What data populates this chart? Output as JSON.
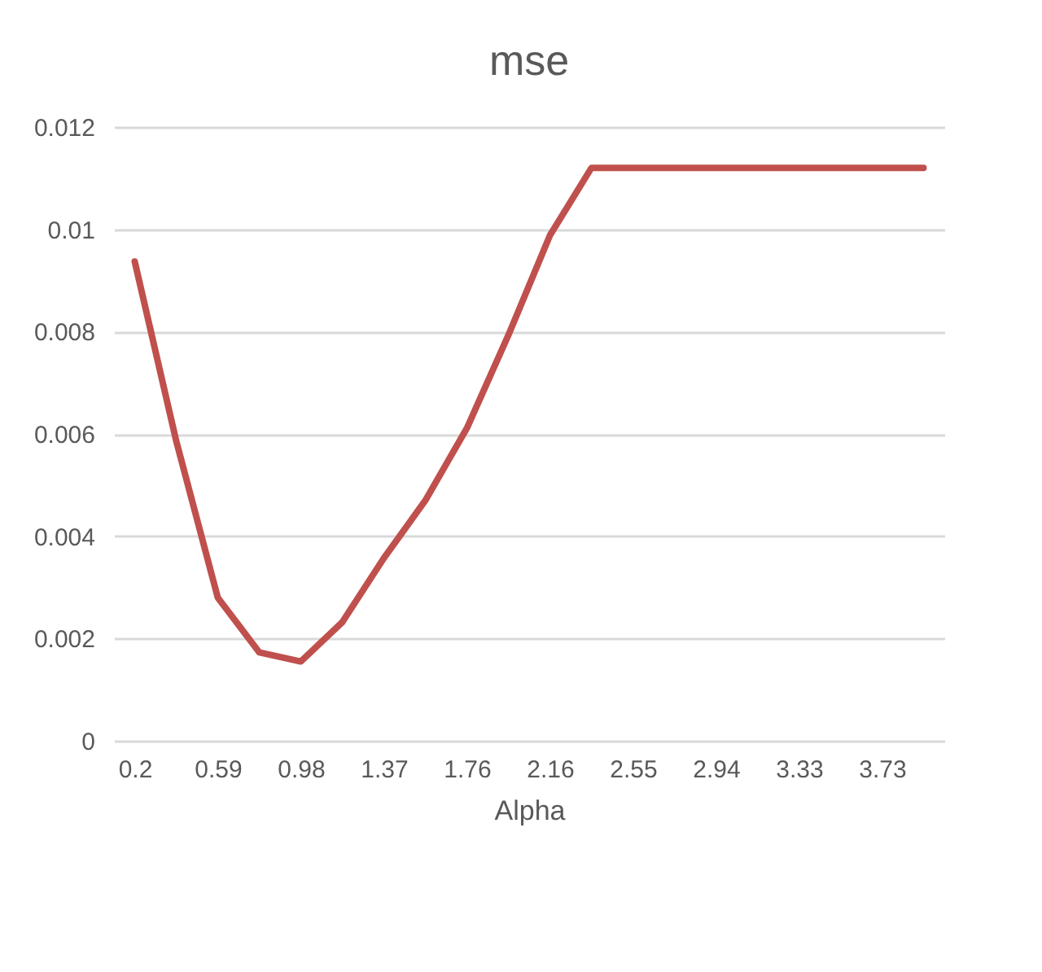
{
  "chart_data": {
    "type": "line",
    "title": "mse",
    "xlabel": "Alpha",
    "categories": [
      "0.2",
      null,
      "0.59",
      null,
      "0.98",
      null,
      "1.37",
      null,
      "1.76",
      null,
      "2.16",
      null,
      "2.55",
      null,
      "2.94",
      null,
      "3.33",
      null,
      "3.73",
      null
    ],
    "series": [
      {
        "color": "#c0504d",
        "values": [
          0.00937,
          0.00586,
          0.0028,
          0.00173,
          0.00155,
          0.00232,
          0.00357,
          0.0047,
          0.00611,
          0.00793,
          0.00988,
          0.0112,
          0.0112,
          0.0112,
          0.0112,
          0.0112,
          0.0112,
          0.0112,
          0.0112,
          0.0112
        ]
      }
    ],
    "ylim": [
      0,
      0.012
    ],
    "yticks": [
      0,
      0.002,
      0.004,
      0.006,
      0.008,
      0.01,
      0.012
    ],
    "grid": "y",
    "legend": false,
    "marker": "none",
    "line_style": "solid"
  }
}
